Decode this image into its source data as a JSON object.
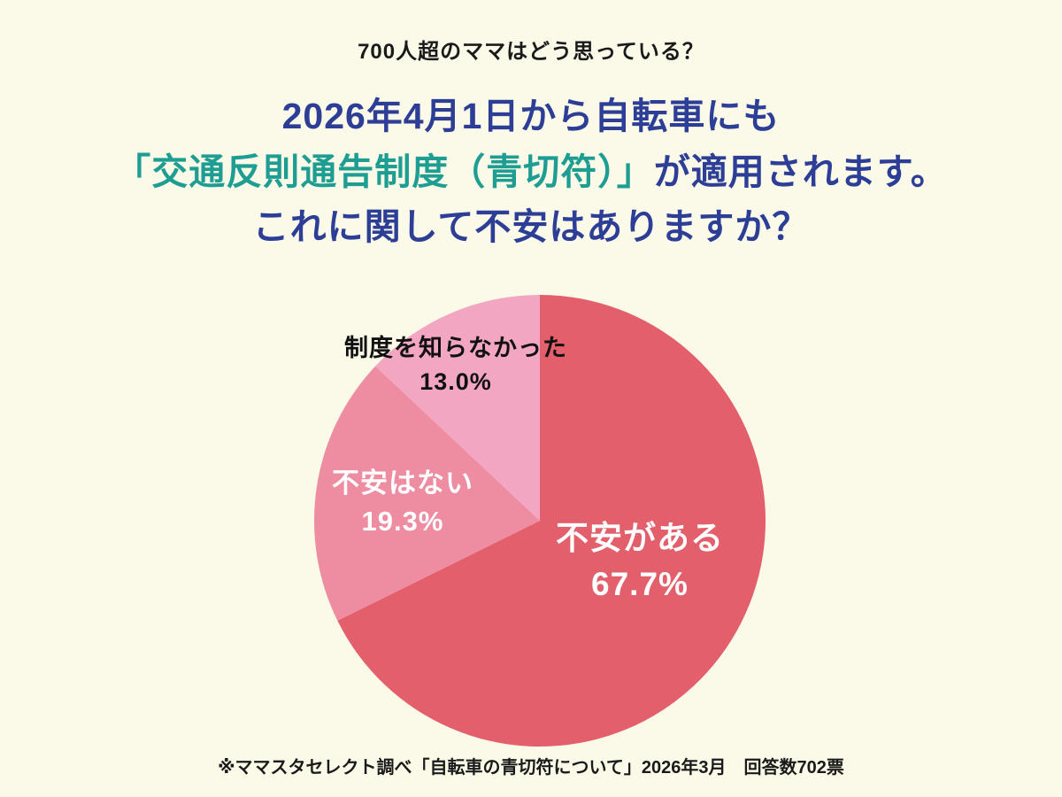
{
  "page": {
    "background": "#FBF9E7",
    "eyebrow": "700人超のママはどう思っている？",
    "title_line1": "2026年4月1日から自転車にも",
    "title_line2_teal": "「交通反則通告制度（青切符）」",
    "title_line2_rest": "が適用されます。",
    "title_line3": "これに関して不安はありますか？",
    "footnote": "※ママスタセレクト調べ「自転車の青切符について」2026年3月　回答数702票"
  },
  "colors": {
    "title_navy": "#2C3E95",
    "title_teal": "#1E9E93",
    "slice_anxiety": "#E25F6B",
    "slice_no_anxiety": "#EE8CA2",
    "slice_knew_nothing": "#F2A6C1"
  },
  "chart_data": {
    "type": "pie",
    "title": "2026年4月1日から自転車にも「交通反則通告制度（青切符）」が適用されます。これに関して不安はありますか？",
    "start_angle_deg": 0,
    "direction": "clockwise",
    "legend_position": "labels-on-slices",
    "total_responses_note": "回答数702票",
    "slices": [
      {
        "label": "不安がある",
        "value": 67.7,
        "display": "67.7%",
        "color": "#E25F6B",
        "text_color": "#FFFFFF",
        "label_position": "inside"
      },
      {
        "label": "不安はない",
        "value": 19.3,
        "display": "19.3%",
        "color": "#EE8CA2",
        "text_color": "#FFFFFF",
        "label_position": "inside"
      },
      {
        "label": "制度を知らなかった",
        "value": 13.0,
        "display": "13.0%",
        "color": "#F2A6C1",
        "text_color": "#111111",
        "label_position": "outside"
      }
    ]
  }
}
